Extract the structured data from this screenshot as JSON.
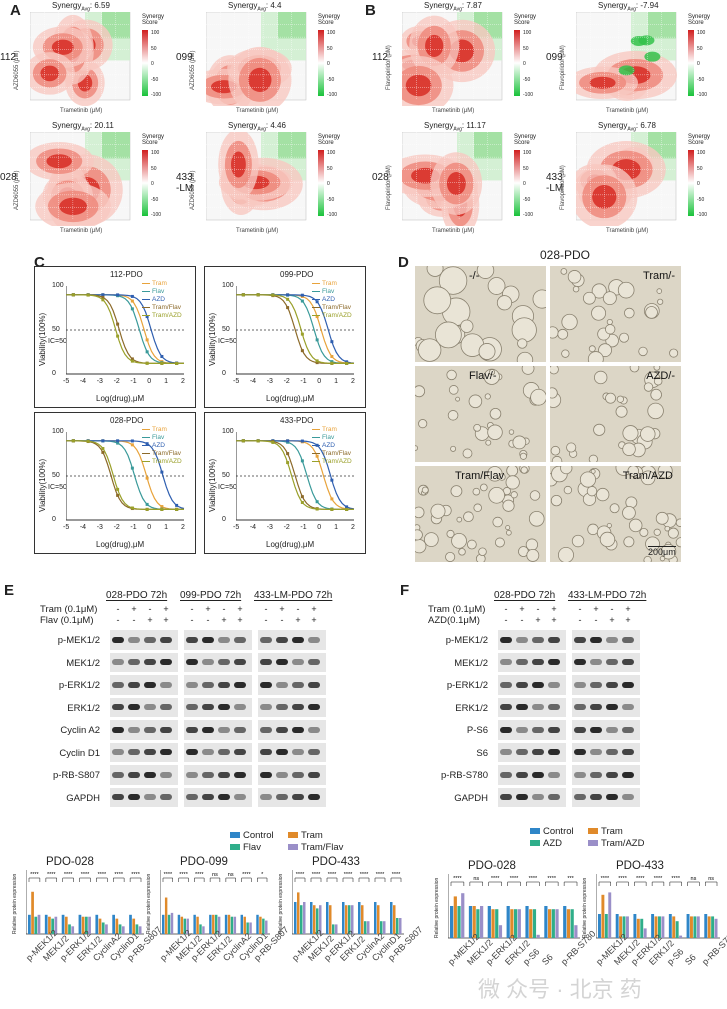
{
  "panel_labels": {
    "A": "A",
    "B": "B",
    "C": "C",
    "D": "D",
    "E": "E",
    "F": "F"
  },
  "synergy": {
    "a_maps": [
      {
        "row": "112",
        "score": "Synergy",
        "sub": "Avg",
        "value": ": 6.59",
        "ylabel": "AZD6055 (μM)",
        "xlabel": "Trametinib (μM)"
      },
      {
        "row": "099",
        "score": "Synergy",
        "sub": "Avg",
        "value": ": 4.4",
        "ylabel": "AZD6055 (μM)",
        "xlabel": "Trametinib (μM)"
      },
      {
        "row": "028",
        "score": "Synergy",
        "sub": "Avg",
        "value": ": 20.11",
        "ylabel": "AZD6055 (μM)",
        "xlabel": "Trametinib (μM)"
      },
      {
        "row": "433\n-LM",
        "score": "Synergy",
        "sub": "Avg",
        "value": ": 4.46",
        "ylabel": "AZD6055 (μM)",
        "xlabel": "Trametinib (μM)"
      }
    ],
    "b_maps": [
      {
        "row": "112",
        "score": "Synergy",
        "sub": "Avg",
        "value": ": 7.87",
        "ylabel": "Flavopiridol (μM)",
        "xlabel": "Trametinib (μM)"
      },
      {
        "row": "099",
        "score": "Synergy",
        "sub": "Avg",
        "value": ": -7.94",
        "ylabel": "Flavopiridol (μM)",
        "xlabel": "Trametinib (μM)"
      },
      {
        "row": "028",
        "score": "Synergy",
        "sub": "Avg",
        "value": ": 11.17",
        "ylabel": "Flavopiridol (μM)",
        "xlabel": "Trametinib (μM)"
      },
      {
        "row": "433\n-LM",
        "score": "Synergy",
        "sub": "Avg",
        "value": ": 6.78",
        "ylabel": "Flavopiridol (μM)",
        "xlabel": "Trametinib (μM)"
      }
    ],
    "legend_title": "Synergy\nScore",
    "legend_ticks": [
      "100",
      "50",
      "0",
      "-50",
      "-100"
    ]
  },
  "curves": {
    "panels": [
      {
        "title": "112-PDO"
      },
      {
        "title": "099-PDO"
      },
      {
        "title": "028-PDO"
      },
      {
        "title": "433-PDO"
      }
    ],
    "ylabel": "Viability(100%)",
    "xlabel": "Log(drug),μM",
    "ic50": "IC=50",
    "yticks": [
      "100",
      "50",
      "0"
    ],
    "xticks": [
      "-5",
      "-4",
      "-3",
      "-2",
      "-1",
      "0",
      "1",
      "2"
    ],
    "legend": [
      "Tram",
      "Flav",
      "AZD",
      "Tram/Flav",
      "Tram/AZD"
    ],
    "colors": [
      "#e8a33b",
      "#3a9a9a",
      "#2f5fb0",
      "#8c6a2a",
      "#9aa02a"
    ]
  },
  "microscopy": {
    "title": "028-PDO",
    "labels": [
      "-/-",
      "Tram/-",
      "Flav/-",
      "AZD/-",
      "Tram/Flav",
      "Tram/AZD"
    ],
    "scale": "200μm"
  },
  "blot_e": {
    "headers": [
      "028-PDO 72h",
      "099-PDO 72h",
      "433-LM-PDO 72h"
    ],
    "treatments": [
      "Tram (0.1μM)",
      "Flav (0.1μM)"
    ],
    "tram_signs": [
      "-",
      "+",
      "-",
      "+"
    ],
    "flav_signs": [
      "-",
      "-",
      "+",
      "+"
    ],
    "rows": [
      "p-MEK1/2",
      "MEK1/2",
      "p-ERK1/2",
      "ERK1/2",
      "Cyclin A2",
      "Cyclin D1",
      "p-RB-S807",
      "GAPDH"
    ]
  },
  "blot_f": {
    "headers": [
      "028-PDO 72h",
      "433-LM-PDO 72h"
    ],
    "treatments": [
      "Tram (0.1μM)",
      "AZD(0.1μM)"
    ],
    "tram_signs": [
      "-",
      "+",
      "-",
      "+"
    ],
    "azd_signs": [
      "-",
      "-",
      "+",
      "+"
    ],
    "rows": [
      "p-MEK1/2",
      "MEK1/2",
      "p-ERK1/2",
      "ERK1/2",
      "P-S6",
      "S6",
      "p-RB-S780",
      "GAPDH"
    ]
  },
  "bars_e": {
    "legend": [
      "Control",
      "Tram",
      "Flav",
      "Tram/Flav"
    ],
    "colors": [
      "#2f86c8",
      "#e08a2a",
      "#2fae8a",
      "#9a8fc8"
    ],
    "titles": [
      "PDO-028",
      "PDO-099",
      "PDO-433"
    ],
    "ylabel": "Relative protein expression",
    "categories": [
      "p-MEK1/2",
      "MEK1/2",
      "p-ERK1/2",
      "ERK1/2",
      "CyclinA2",
      "CyclinD1",
      "p-RB-S807"
    ],
    "sig": [
      [
        "****",
        "****",
        "****",
        "****",
        "****",
        "****",
        "****"
      ],
      [
        "****",
        "****",
        "****",
        "ns",
        "ns",
        "****",
        "*"
      ],
      [
        "****",
        "****",
        "****",
        "****",
        "****",
        "****",
        "****"
      ]
    ]
  },
  "bars_f": {
    "legend": [
      "Control",
      "Tram",
      "AZD",
      "Tram/AZD"
    ],
    "colors": [
      "#2f86c8",
      "#e08a2a",
      "#2fae8a",
      "#9a8fc8"
    ],
    "titles": [
      "PDO-028",
      "PDO-433"
    ],
    "ylabel": "Relative protein expression",
    "categories": [
      "p-MEK1/2",
      "MEK1/2",
      "p-ERK1/2",
      "ERK1/2",
      "p-S6",
      "S6",
      "p-RB-S780"
    ],
    "sig": [
      [
        "****",
        "ns",
        "****",
        "****",
        "****",
        "****",
        "***"
      ],
      [
        "****",
        "****",
        "****",
        "****",
        "****",
        "ns",
        "ns"
      ]
    ]
  },
  "chart_data": [
    {
      "type": "bar",
      "title": "PDO-028",
      "categories": [
        "p-MEK1/2",
        "MEK1/2",
        "p-ERK1/2",
        "ERK1/2",
        "CyclinA2",
        "CyclinD1",
        "p-RB-S807"
      ],
      "series": [
        {
          "name": "Control",
          "values": [
            1,
            1,
            1,
            1,
            1,
            1,
            1
          ]
        },
        {
          "name": "Tram",
          "values": [
            2.2,
            0.9,
            0.9,
            0.9,
            0.8,
            0.8,
            0.8
          ]
        },
        {
          "name": "Flav",
          "values": [
            0.9,
            0.8,
            0.5,
            0.9,
            0.6,
            0.5,
            0.5
          ]
        },
        {
          "name": "Tram/Flav",
          "values": [
            1.0,
            0.9,
            0.4,
            0.9,
            0.5,
            0.4,
            0.4
          ]
        }
      ],
      "ylim": [
        0,
        2.5
      ]
    },
    {
      "type": "bar",
      "title": "PDO-099",
      "categories": [
        "p-MEK1/2",
        "MEK1/2",
        "p-ERK1/2",
        "ERK1/2",
        "CyclinA2",
        "CyclinD1",
        "p-RB-S807"
      ],
      "series": [
        {
          "name": "Control",
          "values": [
            1,
            1,
            1,
            1,
            1,
            1,
            1
          ]
        },
        {
          "name": "Tram",
          "values": [
            1.9,
            0.9,
            0.9,
            1.0,
            1.0,
            0.9,
            0.9
          ]
        },
        {
          "name": "Flav",
          "values": [
            1.0,
            0.8,
            0.5,
            1.0,
            0.9,
            0.6,
            0.8
          ]
        },
        {
          "name": "Tram/Flav",
          "values": [
            1.1,
            0.8,
            0.4,
            0.9,
            0.9,
            0.6,
            0.7
          ]
        }
      ],
      "ylim": [
        0,
        2.5
      ]
    },
    {
      "type": "bar",
      "title": "PDO-433",
      "categories": [
        "p-MEK1/2",
        "MEK1/2",
        "p-ERK1/2",
        "ERK1/2",
        "CyclinA2",
        "CyclinD1",
        "p-RB-S807"
      ],
      "series": [
        {
          "name": "Control",
          "values": [
            1,
            1,
            1,
            1,
            1,
            1,
            1
          ]
        },
        {
          "name": "Tram",
          "values": [
            1.3,
            0.9,
            0.9,
            0.9,
            0.9,
            0.9,
            0.9
          ]
        },
        {
          "name": "Flav",
          "values": [
            0.9,
            0.8,
            0.3,
            0.9,
            0.4,
            0.4,
            0.5
          ]
        },
        {
          "name": "Tram/Flav",
          "values": [
            1.0,
            0.9,
            0.3,
            0.9,
            0.4,
            0.4,
            0.5
          ]
        }
      ],
      "ylim": [
        0,
        1.5
      ]
    },
    {
      "type": "bar",
      "title": "PDO-028",
      "categories": [
        "p-MEK1/2",
        "MEK1/2",
        "p-ERK1/2",
        "ERK1/2",
        "p-S6",
        "S6",
        "p-RB-S780"
      ],
      "series": [
        {
          "name": "Control",
          "values": [
            1,
            1,
            1,
            1,
            1,
            1,
            1
          ]
        },
        {
          "name": "Tram",
          "values": [
            1.3,
            1.0,
            0.9,
            0.9,
            0.9,
            0.9,
            0.9
          ]
        },
        {
          "name": "AZD",
          "values": [
            1.0,
            0.9,
            0.9,
            0.9,
            0.9,
            0.9,
            0.9
          ]
        },
        {
          "name": "Tram/AZD",
          "values": [
            1.4,
            1.0,
            0.4,
            0.9,
            0.1,
            0.9,
            0.4
          ]
        }
      ],
      "ylim": [
        0,
        1.5
      ]
    },
    {
      "type": "bar",
      "title": "PDO-433",
      "categories": [
        "p-MEK1/2",
        "MEK1/2",
        "p-ERK1/2",
        "ERK1/2",
        "p-S6",
        "S6",
        "p-RB-S780"
      ],
      "series": [
        {
          "name": "Control",
          "values": [
            1,
            1,
            1,
            1,
            1,
            1,
            1
          ]
        },
        {
          "name": "Tram",
          "values": [
            1.8,
            0.9,
            0.8,
            0.9,
            0.9,
            0.9,
            0.9
          ]
        },
        {
          "name": "AZD",
          "values": [
            1.0,
            0.9,
            0.8,
            0.9,
            0.7,
            0.9,
            0.9
          ]
        },
        {
          "name": "Tram/AZD",
          "values": [
            1.9,
            0.9,
            0.4,
            0.9,
            0.1,
            0.9,
            0.8
          ]
        }
      ],
      "ylim": [
        0,
        2.0
      ]
    }
  ],
  "watermark": "微 众号 · 北京 药"
}
